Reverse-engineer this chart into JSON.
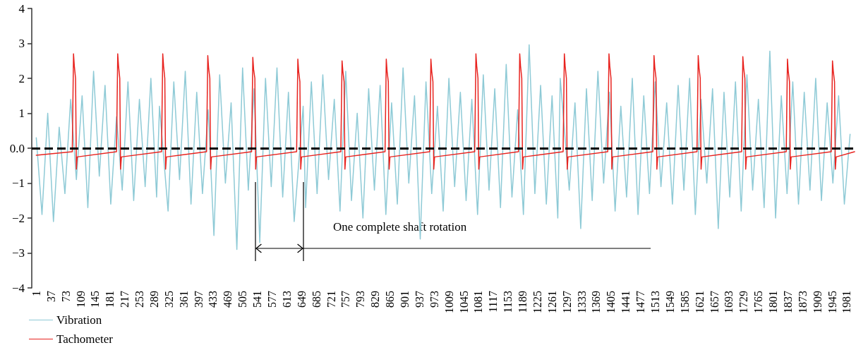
{
  "chart_data": {
    "type": "line",
    "xlim": [
      -10,
      2000
    ],
    "xticks": [
      1,
      37,
      73,
      109,
      145,
      181,
      217,
      253,
      289,
      325,
      361,
      397,
      433,
      469,
      505,
      541,
      577,
      613,
      649,
      685,
      721,
      757,
      793,
      829,
      865,
      901,
      937,
      973,
      1009,
      1045,
      1081,
      1117,
      1153,
      1189,
      1225,
      1261,
      1297,
      1333,
      1369,
      1405,
      1441,
      1477,
      1513,
      1549,
      1585,
      1621,
      1657,
      1693,
      1729,
      1765,
      1801,
      1837,
      1873,
      1909,
      1945,
      1981
    ],
    "ylim": [
      -4,
      4
    ],
    "yticks": [
      4,
      3,
      2,
      1,
      {
        "value": 0,
        "label": "0.0"
      },
      {
        "value": -1,
        "label": "−1"
      },
      {
        "value": -2,
        "label": "−2"
      },
      {
        "value": -3,
        "label": "−3"
      },
      {
        "value": -4,
        "label": "−4"
      }
    ],
    "grid": false,
    "legend": "bottom left",
    "marker": "none",
    "line_style": "solid",
    "ref_lines": [
      {
        "axis": "y",
        "value": 0,
        "color": "#000000",
        "line_style": "dashed"
      }
    ],
    "annotations": [
      "One complete shaft rotation"
    ],
    "series": [
      {
        "name": "Vibration",
        "color": "#8ecad6",
        "x": [
          1,
          15,
          29,
          43,
          57,
          71,
          85,
          99,
          113,
          127,
          141,
          155,
          169,
          183,
          197,
          211,
          225,
          239,
          253,
          267,
          281,
          295,
          302,
          323,
          337,
          351,
          365,
          379,
          393,
          407,
          421,
          435,
          449,
          463,
          477,
          491,
          505,
          519,
          533,
          547,
          561,
          575,
          589,
          603,
          617,
          631,
          653,
          659,
          673,
          687,
          701,
          715,
          729,
          743,
          757,
          771,
          785,
          799,
          813,
          827,
          841,
          855,
          869,
          883,
          897,
          911,
          925,
          939,
          953,
          967,
          981,
          995,
          1009,
          1023,
          1037,
          1051,
          1065,
          1079,
          1093,
          1107,
          1121,
          1135,
          1149,
          1163,
          1177,
          1191,
          1205,
          1219,
          1233,
          1247,
          1261,
          1275,
          1281,
          1303,
          1317,
          1331,
          1345,
          1359,
          1373,
          1387,
          1401,
          1415,
          1429,
          1443,
          1457,
          1471,
          1485,
          1499,
          1513,
          1527,
          1541,
          1555,
          1569,
          1583,
          1597,
          1611,
          1625,
          1639,
          1653,
          1667,
          1681,
          1695,
          1709,
          1723,
          1737,
          1751,
          1765,
          1779,
          1793,
          1807,
          1821,
          1835,
          1849,
          1863,
          1877,
          1891,
          1905,
          1919,
          1933,
          1947,
          1961,
          1975,
          1989
        ],
        "values": [
          0.3,
          -1.9,
          1.0,
          -2.1,
          0.6,
          -1.3,
          1.4,
          -0.9,
          1.5,
          -1.7,
          2.2,
          -0.8,
          1.8,
          -1.6,
          0.9,
          -1.2,
          1.9,
          -1.5,
          1.4,
          -1.1,
          2.0,
          -1.4,
          1.2,
          -1.8,
          1.9,
          -0.9,
          2.2,
          -1.6,
          1.6,
          -1.3,
          1.1,
          -2.5,
          2.1,
          -1.0,
          1.3,
          -2.9,
          2.3,
          -1.2,
          1.7,
          -2.7,
          2.0,
          -1.1,
          2.3,
          -1.4,
          1.6,
          -2.1,
          1.2,
          -1.7,
          1.9,
          -1.3,
          2.1,
          -0.9,
          1.4,
          -1.8,
          2.2,
          -1.5,
          1.0,
          -2.0,
          1.7,
          -1.2,
          1.8,
          -1.9,
          1.3,
          -1.6,
          2.3,
          -1.0,
          1.5,
          -2.6,
          1.9,
          -1.3,
          1.2,
          -1.8,
          2.0,
          -1.1,
          1.6,
          -1.5,
          1.4,
          -1.9,
          2.1,
          -1.2,
          1.7,
          -1.7,
          2.4,
          -1.4,
          1.1,
          -1.9,
          2.96,
          -1.3,
          1.8,
          -1.6,
          1.5,
          -2.0,
          2.0,
          -1.2,
          1.3,
          -2.3,
          1.7,
          -1.5,
          2.2,
          -1.0,
          1.6,
          -1.8,
          1.2,
          -1.4,
          2.0,
          -1.9,
          1.5,
          -1.3,
          1.9,
          -1.1,
          1.3,
          -1.6,
          1.8,
          -1.2,
          2.0,
          -1.9,
          1.4,
          -1.0,
          1.7,
          -2.3,
          1.6,
          -1.4,
          1.9,
          -1.8,
          2.1,
          -1.2,
          1.4,
          -1.7,
          2.78,
          -2.0,
          1.5,
          -1.3,
          1.9,
          -1.6,
          1.6,
          -1.2,
          2.0,
          -1.5,
          1.3,
          -1.0,
          1.5,
          -1.6,
          0.4
        ]
      },
      {
        "name": "Tachometer",
        "color": "#e8231f",
        "x": [
          1,
          89,
          92,
          94,
          97,
          99,
          101,
          197,
          200,
          202,
          205,
          207,
          209,
          307,
          310,
          312,
          315,
          317,
          319,
          417,
          420,
          422,
          425,
          427,
          429,
          527,
          530,
          532,
          535,
          537,
          539,
          637,
          640,
          642,
          645,
          647,
          649,
          745,
          748,
          750,
          753,
          755,
          757,
          853,
          856,
          858,
          861,
          863,
          865,
          962,
          965,
          967,
          970,
          972,
          974,
          1072,
          1075,
          1077,
          1080,
          1082,
          1084,
          1179,
          1182,
          1184,
          1187,
          1189,
          1191,
          1288,
          1291,
          1293,
          1296,
          1298,
          1300,
          1397,
          1400,
          1402,
          1405,
          1407,
          1409,
          1507,
          1510,
          1512,
          1515,
          1517,
          1519,
          1615,
          1618,
          1620,
          1623,
          1625,
          1627,
          1724,
          1727,
          1729,
          1732,
          1734,
          1736,
          1833,
          1836,
          1838,
          1841,
          1843,
          1845,
          1943,
          1946,
          1948,
          1951,
          1953,
          1955,
          2000
        ],
        "values": [
          -0.2,
          -0.1,
          2.7,
          2.35,
          2.0,
          -0.6,
          -0.25,
          -0.1,
          2.7,
          2.35,
          2.0,
          -0.6,
          -0.25,
          -0.1,
          2.7,
          2.35,
          2.0,
          -0.6,
          -0.25,
          -0.1,
          2.65,
          2.3,
          2.0,
          -0.6,
          -0.25,
          -0.1,
          2.6,
          2.25,
          2.0,
          -0.6,
          -0.25,
          -0.1,
          2.55,
          2.2,
          1.9,
          -0.6,
          -0.25,
          -0.1,
          2.5,
          2.2,
          1.9,
          -0.6,
          -0.25,
          -0.1,
          2.55,
          2.2,
          1.9,
          -0.6,
          -0.25,
          -0.1,
          2.55,
          2.2,
          1.9,
          -0.6,
          -0.25,
          -0.1,
          2.7,
          2.35,
          2.0,
          -0.6,
          -0.25,
          -0.1,
          2.7,
          2.35,
          2.0,
          -0.6,
          -0.25,
          -0.1,
          2.7,
          2.35,
          2.0,
          -0.6,
          -0.25,
          -0.1,
          2.7,
          2.35,
          2.0,
          -0.6,
          -0.25,
          -0.1,
          2.65,
          2.3,
          2.0,
          -0.6,
          -0.25,
          -0.1,
          2.65,
          2.3,
          2.0,
          -0.6,
          -0.25,
          -0.1,
          2.62,
          2.3,
          2.0,
          -0.6,
          -0.25,
          -0.1,
          2.55,
          2.2,
          1.9,
          -0.6,
          -0.25,
          -0.1,
          2.5,
          2.2,
          1.9,
          -0.6,
          -0.25,
          -0.1
        ]
      }
    ]
  }
}
